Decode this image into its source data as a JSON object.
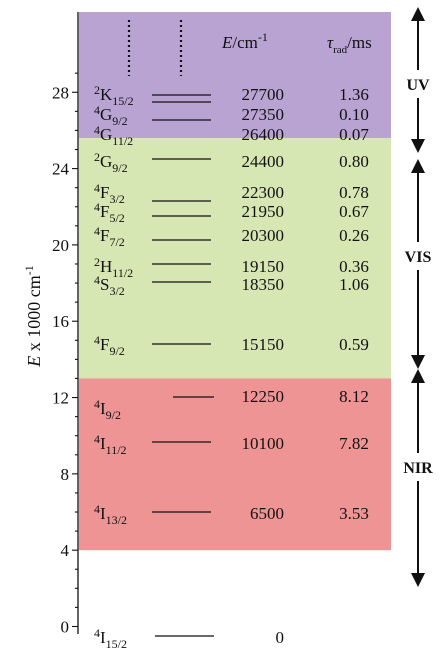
{
  "axis": {
    "title": "E x 1000 cm-1",
    "title_main": "E",
    "title_rest": " x 1000 cm",
    "title_sup": "-1",
    "ticks": [
      "0",
      "4",
      "8",
      "12",
      "16",
      "20",
      "24",
      "28"
    ]
  },
  "header": {
    "energy_main": "E",
    "energy_rest": "/cm",
    "energy_sup": "-1",
    "tau_main": "τ",
    "tau_sub": "rad",
    "tau_rest": "/ms"
  },
  "regions": [
    {
      "label": "UV",
      "color": "#b9a3d3",
      "from": 29000,
      "to": 25600
    },
    {
      "label": "VIS",
      "color": "#d6e7b4",
      "from": 25600,
      "to": 13000
    },
    {
      "label": "NIR",
      "color": "#ef9494",
      "from": 13000,
      "to": 4000
    }
  ],
  "levels": [
    {
      "mult": "2",
      "term": "K",
      "j": "15/2",
      "energy": "27700",
      "tau": "1.36"
    },
    {
      "mult": "4",
      "term": "G",
      "j": "9/2",
      "energy": "27350",
      "tau": "0.10"
    },
    {
      "mult": "4",
      "term": "G",
      "j": "11/2",
      "energy": "26400",
      "tau": "0.07"
    },
    {
      "mult": "2",
      "term": "G",
      "j": "9/2",
      "energy": "24400",
      "tau": "0.80"
    },
    {
      "mult": "4",
      "term": "F",
      "j": "3/2",
      "energy": "22300",
      "tau": "0.78"
    },
    {
      "mult": "4",
      "term": "F",
      "j": "5/2",
      "energy": "21950",
      "tau": "0.67"
    },
    {
      "mult": "4",
      "term": "F",
      "j": "7/2",
      "energy": "20300",
      "tau": "0.26"
    },
    {
      "mult": "2",
      "term": "H",
      "j": "11/2",
      "energy": "19150",
      "tau": "0.36"
    },
    {
      "mult": "4",
      "term": "S",
      "j": "3/2",
      "energy": "18350",
      "tau": "1.06"
    },
    {
      "mult": "4",
      "term": "F",
      "j": "9/2",
      "energy": "15150",
      "tau": "0.59"
    },
    {
      "mult": "4",
      "term": "I",
      "j": "9/2",
      "energy": "12250",
      "tau": "8.12"
    },
    {
      "mult": "4",
      "term": "I",
      "j": "11/2",
      "energy": "10100",
      "tau": "7.82"
    },
    {
      "mult": "4",
      "term": "I",
      "j": "13/2",
      "energy": "6500",
      "tau": "3.53"
    },
    {
      "mult": "4",
      "term": "I",
      "j": "15/2",
      "energy": "0",
      "tau": ""
    }
  ]
}
